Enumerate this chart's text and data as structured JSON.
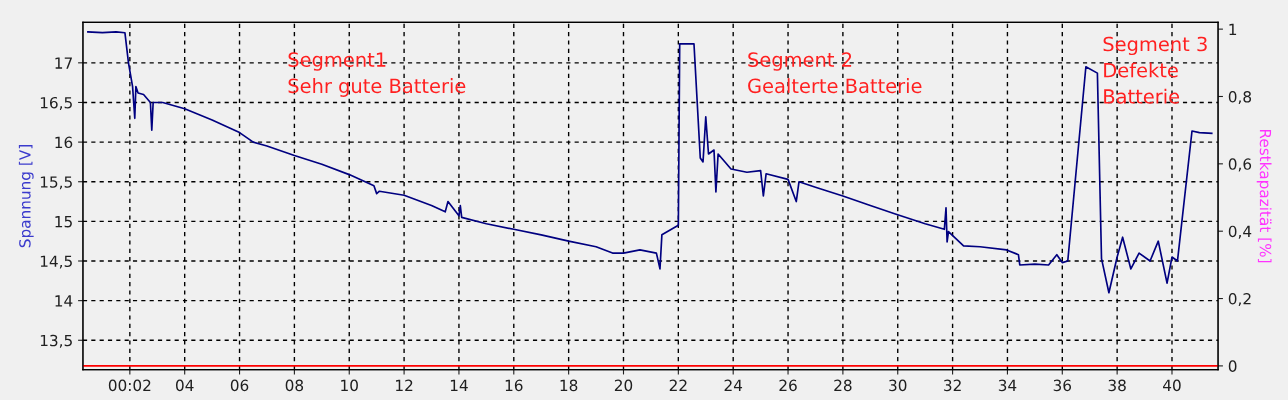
{
  "chart_data": {
    "type": "line",
    "xlabel": null,
    "ylabel": "Spannung [V]",
    "y2label": "Restkapazität [%]",
    "x": [
      0.47,
      1.0,
      1.5,
      1.82,
      1.95,
      2.1,
      2.18,
      2.22,
      2.3,
      2.5,
      2.75,
      2.8,
      2.85,
      3.2,
      4.0,
      5.0,
      6.0,
      6.5,
      7.0,
      8.0,
      9.0,
      10.0,
      10.9,
      11.0,
      11.1,
      12.0,
      13.0,
      13.5,
      13.6,
      14.0,
      14.05,
      14.1,
      15.0,
      16.0,
      17.0,
      18.0,
      19.0,
      19.6,
      20.0,
      20.6,
      21.2,
      21.33,
      21.4,
      22.0,
      22.05,
      22.3,
      22.57,
      22.8,
      22.9,
      23.0,
      23.1,
      23.3,
      23.37,
      23.45,
      23.92,
      24.5,
      25.0,
      25.1,
      25.2,
      26.0,
      26.3,
      26.4,
      27.0,
      28.0,
      29.0,
      29.94,
      31.0,
      31.7,
      31.76,
      31.8,
      31.85,
      32.4,
      33.0,
      33.97,
      34.4,
      34.45,
      35.0,
      35.5,
      35.8,
      36.0,
      36.2,
      36.86,
      37.28,
      37.43,
      37.7,
      38.0,
      38.2,
      38.5,
      38.8,
      39.2,
      39.5,
      39.82,
      40.0,
      40.2,
      40.73,
      41.0,
      41.45
    ],
    "series": [
      {
        "color": "#000080",
        "values": [
          17.39,
          17.38,
          17.39,
          17.38,
          17.0,
          16.7,
          16.3,
          16.7,
          16.62,
          16.6,
          16.5,
          16.15,
          16.5,
          16.5,
          16.42,
          16.28,
          16.12,
          16.0,
          15.95,
          15.83,
          15.72,
          15.59,
          15.45,
          15.35,
          15.38,
          15.33,
          15.2,
          15.12,
          15.25,
          15.07,
          15.2,
          15.05,
          14.97,
          14.9,
          14.83,
          14.75,
          14.68,
          14.6,
          14.6,
          14.64,
          14.6,
          14.4,
          14.83,
          14.95,
          17.24,
          17.24,
          17.24,
          15.8,
          15.75,
          16.32,
          15.85,
          15.9,
          15.37,
          15.85,
          15.66,
          15.62,
          15.64,
          15.32,
          15.6,
          15.53,
          15.25,
          15.5,
          15.43,
          15.32,
          15.2,
          15.09,
          14.97,
          14.9,
          15.17,
          14.74,
          14.87,
          14.69,
          14.68,
          14.64,
          14.58,
          14.45,
          14.46,
          14.45,
          14.58,
          14.48,
          14.5,
          16.95,
          16.87,
          14.53,
          14.1,
          14.55,
          14.8,
          14.4,
          14.6,
          14.5,
          14.75,
          14.22,
          14.55,
          14.5,
          16.14,
          16.12,
          16.11
        ]
      }
    ],
    "xticks": [
      {
        "value": 2,
        "label": "00:02"
      },
      {
        "value": 4,
        "label": "04"
      },
      {
        "value": 6,
        "label": "06"
      },
      {
        "value": 8,
        "label": "08"
      },
      10,
      12,
      14,
      16,
      18,
      20,
      22,
      24,
      26,
      28,
      30,
      32,
      34,
      36,
      38,
      40
    ],
    "xlim": [
      0.29,
      41.68
    ],
    "ylim": [
      13.13,
      17.51
    ],
    "yticks": [
      {
        "value": 13.5,
        "label": "13,5"
      },
      14,
      {
        "value": 14.5,
        "label": "14,5"
      },
      15,
      {
        "value": 15.5,
        "label": "15,5"
      },
      16,
      {
        "value": 16.5,
        "label": "16,5"
      },
      17
    ],
    "y2lim": [
      -0.011,
      1.02
    ],
    "y2ticks": [
      0,
      {
        "value": 0.2,
        "label": "0,2"
      },
      {
        "value": 0.4,
        "label": "0,4"
      },
      {
        "value": 0.6,
        "label": "0,6"
      },
      {
        "value": 0.8,
        "label": "0,8"
      },
      1
    ],
    "ref_lines": [
      {
        "axis": "y2",
        "value": 0,
        "color": "#ff0000"
      }
    ],
    "annotations": [
      "Segment1\nSehr gute Batterie",
      "Segment 2\nGealterte Batterie",
      "Segment 3\nDefekte\nBatterie"
    ],
    "grid": true,
    "line_style": "solid",
    "marker": "none",
    "legend": false
  }
}
